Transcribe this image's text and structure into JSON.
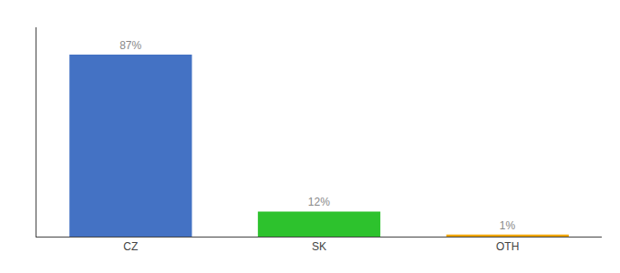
{
  "chart_data": {
    "type": "bar",
    "categories": [
      "CZ",
      "SK",
      "OTH"
    ],
    "values": [
      87,
      12,
      1
    ],
    "value_labels": [
      "87%",
      "12%",
      "1%"
    ],
    "data_labels": true,
    "colors": [
      "#4472c4",
      "#2dc22d",
      "#f0a500"
    ],
    "ylim": [
      0,
      100
    ],
    "yticks": [],
    "grid": false,
    "tick_labels": "x"
  }
}
